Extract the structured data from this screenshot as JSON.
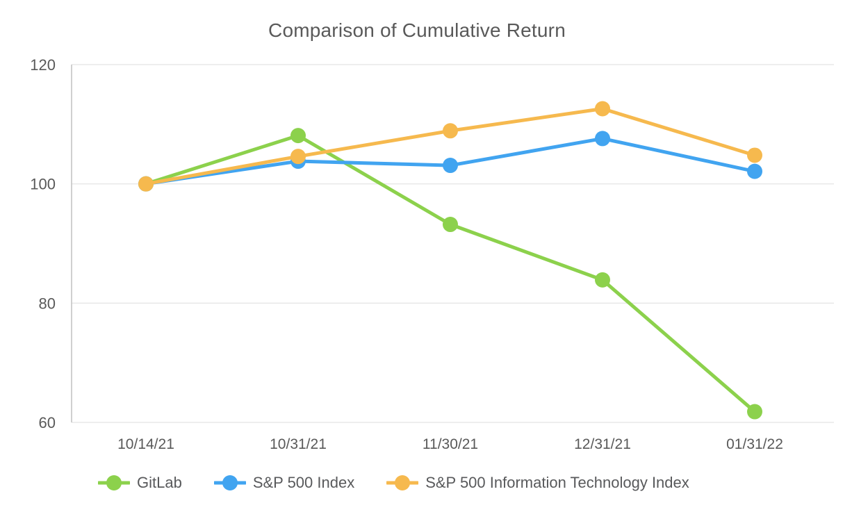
{
  "chart_data": {
    "type": "line",
    "title": "Comparison of Cumulative Return",
    "categories": [
      "10/14/21",
      "10/31/21",
      "11/30/21",
      "12/31/21",
      "01/31/22"
    ],
    "series": [
      {
        "name": "GitLab",
        "color": "#8CD14C",
        "values": [
          100,
          108.1,
          93.2,
          83.9,
          61.8
        ]
      },
      {
        "name": "S&P 500 Index",
        "color": "#41A4F0",
        "values": [
          100,
          103.8,
          103.1,
          107.6,
          102.1
        ]
      },
      {
        "name": "S&P 500 Information Technology Index",
        "color": "#F6B94E",
        "values": [
          100,
          104.6,
          108.9,
          112.6,
          104.8
        ]
      }
    ],
    "yticks": [
      60,
      80,
      100,
      120
    ],
    "ylim": [
      60,
      120
    ],
    "xlabel": "",
    "ylabel": "",
    "grid": "horizontal",
    "legend_position": "bottom",
    "marker_radius": 11,
    "line_width": 5
  },
  "colors": {
    "title_text": "#595959",
    "axis_text": "#595959",
    "legend_text": "#58595B",
    "gridline": "#E8E8E8",
    "axis_line": "#C0C0C0",
    "background": "#FFFFFF"
  }
}
